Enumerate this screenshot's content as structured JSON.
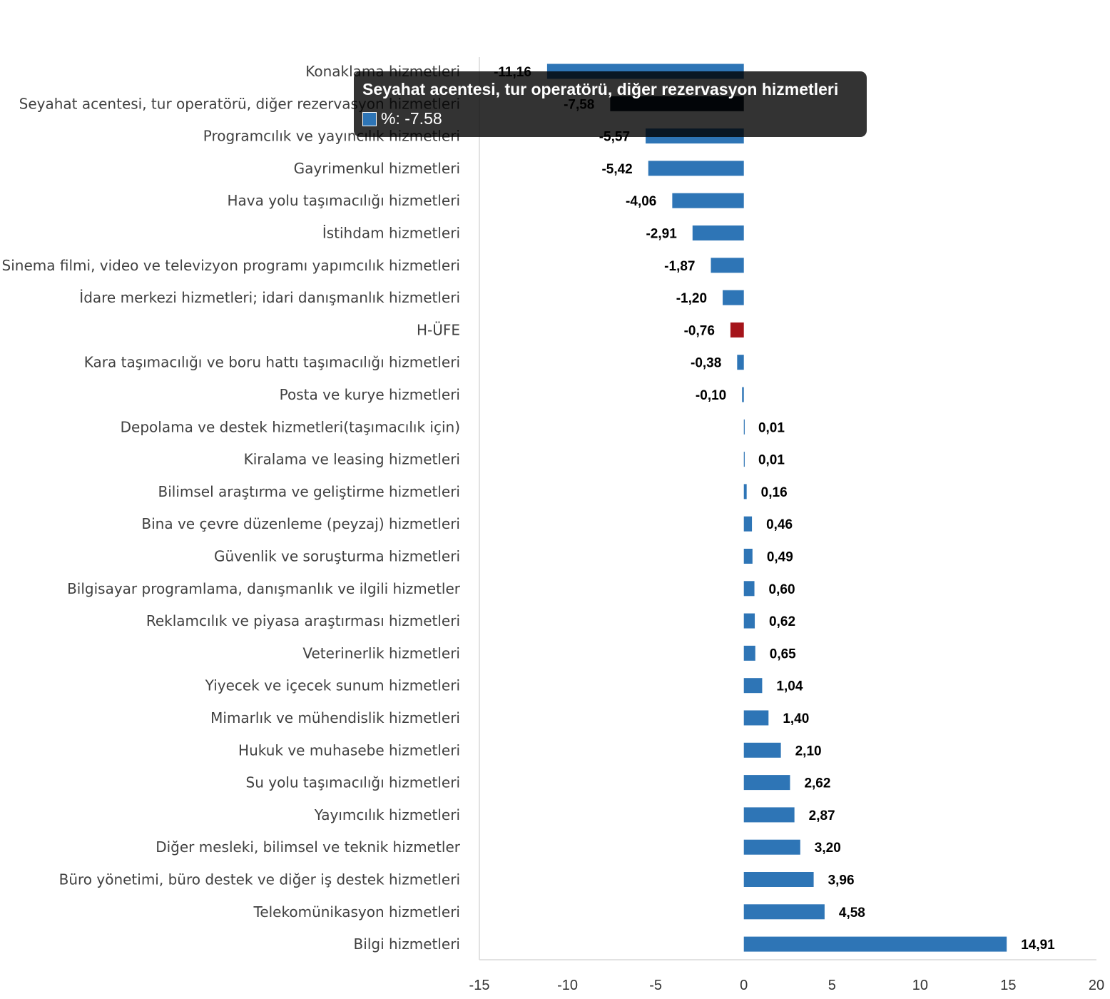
{
  "chart_data": {
    "type": "bar",
    "orientation": "horizontal",
    "categories": [
      "Konaklama hizmetleri",
      "Seyahat acentesi, tur operatörü, diğer rezervasyon hizmetleri",
      "Programcılık ve yayıncılık hizmetleri",
      "Gayrimenkul hizmetleri",
      "Hava yolu taşımacılığı hizmetleri",
      "İstihdam hizmetleri",
      "Sinema filmi, video ve televizyon programı yapımcılık hizmetleri",
      "İdare merkezi hizmetleri; idari danışmanlık hizmetleri",
      "H-ÜFE",
      "Kara taşımacılığı ve boru hattı taşımacılığı hizmetleri",
      "Posta ve kurye hizmetleri",
      "Depolama ve destek hizmetleri(taşımacılık için)",
      "Kiralama ve leasing hizmetleri",
      "Bilimsel araştırma ve geliştirme hizmetleri",
      "Bina ve çevre düzenleme (peyzaj) hizmetleri",
      "Güvenlik ve soruşturma hizmetleri",
      "Bilgisayar programlama, danışmanlık ve ilgili hizmetler",
      "Reklamcılık ve piyasa araştırması hizmetleri",
      "Veterinerlik hizmetleri",
      "Yiyecek ve içecek sunum hizmetleri",
      "Mimarlık ve mühendislik hizmetleri",
      "Hukuk ve muhasebe hizmetleri",
      "Su yolu taşımacılığı hizmetleri",
      "Yayımcılık hizmetleri",
      "Diğer mesleki, bilimsel ve teknik hizmetler",
      "Büro yönetimi, büro destek ve diğer iş destek hizmetleri",
      "Telekomünikasyon hizmetleri",
      "Bilgi hizmetleri"
    ],
    "values": [
      -11.16,
      -7.58,
      -5.57,
      -5.42,
      -4.06,
      -2.91,
      -1.87,
      -1.2,
      -0.76,
      -0.38,
      -0.1,
      0.01,
      0.01,
      0.16,
      0.46,
      0.49,
      0.6,
      0.62,
      0.65,
      1.04,
      1.4,
      2.1,
      2.62,
      2.87,
      3.2,
      3.96,
      4.58,
      14.91
    ],
    "value_labels": [
      "-11,16",
      "-7,58",
      "-5,57",
      "-5,42",
      "-4,06",
      "-2,91",
      "-1,87",
      "-1,20",
      "-0,76",
      "-0,38",
      "-0,10",
      "0,01",
      "0,01",
      "0,16",
      "0,46",
      "0,49",
      "0,60",
      "0,62",
      "0,65",
      "1,04",
      "1,40",
      "2,10",
      "2,62",
      "2,87",
      "3,20",
      "3,96",
      "4,58",
      "14,91"
    ],
    "highlight_category": "H-ÜFE",
    "colors": {
      "bar": "#2e75b6",
      "highlight": "#a5141a",
      "hovered": "#0a1a2b"
    },
    "xlim": [
      -15,
      20
    ],
    "xticks": [
      "-15",
      "-10",
      "-5",
      "0",
      "5",
      "10",
      "15",
      "20"
    ],
    "xtick_values": [
      -15,
      -10,
      -5,
      0,
      5,
      10,
      15,
      20
    ],
    "hovered_index": 1,
    "grid": false,
    "legend": "none"
  },
  "tooltip": {
    "title": "Seyahat acentesi, tur operatörü, diğer rezervasyon hizmetleri",
    "series_label": "%: -7.58",
    "swatch_color": "#2e75b6"
  }
}
